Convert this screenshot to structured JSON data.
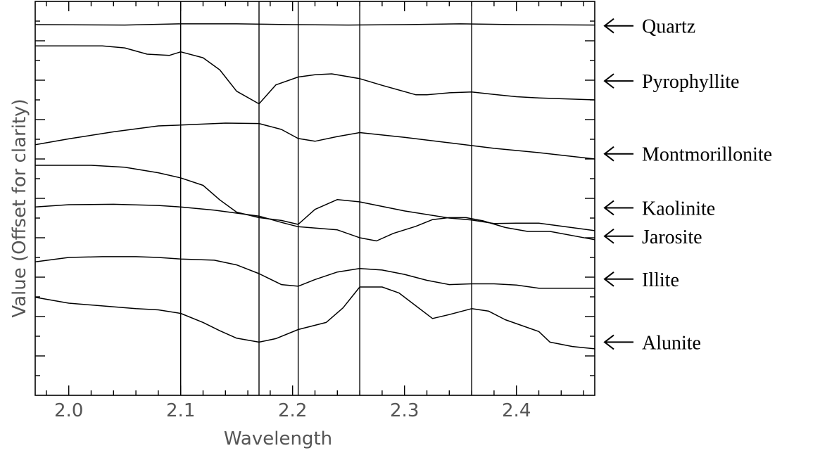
{
  "chart_data": {
    "type": "line",
    "title": "",
    "xlabel": "Wavelength",
    "ylabel": "Value (Offset for clarity)",
    "xlim": [
      1.97,
      2.47
    ],
    "ylim": [
      0,
      1
    ],
    "xticks": [
      2.0,
      2.1,
      2.2,
      2.3,
      2.4
    ],
    "xtick_labels": [
      "2.0",
      "2.1",
      "2.2",
      "2.3",
      "2.4"
    ],
    "reference_lines_x": [
      2.1,
      2.17,
      2.205,
      2.26,
      2.36
    ],
    "grid": false,
    "legend": "right, arrow-labelled",
    "line_color": "#000000",
    "series": [
      {
        "name": "Quartz",
        "label_y": 0.938,
        "points": [
          [
            1.97,
            0.941
          ],
          [
            2.05,
            0.94
          ],
          [
            2.1,
            0.943
          ],
          [
            2.15,
            0.943
          ],
          [
            2.2,
            0.941
          ],
          [
            2.25,
            0.94
          ],
          [
            2.3,
            0.941
          ],
          [
            2.35,
            0.943
          ],
          [
            2.4,
            0.941
          ],
          [
            2.47,
            0.94
          ]
        ]
      },
      {
        "name": "Pyrophyllite",
        "label_y": 0.798,
        "points": [
          [
            1.97,
            0.887
          ],
          [
            2.03,
            0.887
          ],
          [
            2.05,
            0.882
          ],
          [
            2.07,
            0.866
          ],
          [
            2.09,
            0.863
          ],
          [
            2.1,
            0.872
          ],
          [
            2.12,
            0.857
          ],
          [
            2.135,
            0.826
          ],
          [
            2.15,
            0.772
          ],
          [
            2.17,
            0.74
          ],
          [
            2.185,
            0.788
          ],
          [
            2.205,
            0.808
          ],
          [
            2.22,
            0.814
          ],
          [
            2.235,
            0.816
          ],
          [
            2.26,
            0.804
          ],
          [
            2.28,
            0.787
          ],
          [
            2.31,
            0.763
          ],
          [
            2.32,
            0.763
          ],
          [
            2.34,
            0.768
          ],
          [
            2.36,
            0.77
          ],
          [
            2.38,
            0.764
          ],
          [
            2.4,
            0.758
          ],
          [
            2.42,
            0.755
          ],
          [
            2.47,
            0.75
          ]
        ]
      },
      {
        "name": "Montmorillonite",
        "label_y": 0.613,
        "points": [
          [
            1.97,
            0.636
          ],
          [
            2.0,
            0.651
          ],
          [
            2.04,
            0.669
          ],
          [
            2.08,
            0.684
          ],
          [
            2.1,
            0.686
          ],
          [
            2.14,
            0.691
          ],
          [
            2.17,
            0.69
          ],
          [
            2.19,
            0.675
          ],
          [
            2.205,
            0.652
          ],
          [
            2.22,
            0.645
          ],
          [
            2.24,
            0.657
          ],
          [
            2.26,
            0.667
          ],
          [
            2.3,
            0.655
          ],
          [
            2.34,
            0.641
          ],
          [
            2.38,
            0.627
          ],
          [
            2.42,
            0.616
          ],
          [
            2.47,
            0.6
          ]
        ]
      },
      {
        "name": "Kaolinite",
        "label_y": 0.476,
        "points": [
          [
            1.97,
            0.584
          ],
          [
            2.02,
            0.584
          ],
          [
            2.05,
            0.579
          ],
          [
            2.08,
            0.565
          ],
          [
            2.1,
            0.552
          ],
          [
            2.12,
            0.533
          ],
          [
            2.135,
            0.496
          ],
          [
            2.15,
            0.465
          ],
          [
            2.17,
            0.451
          ],
          [
            2.19,
            0.444
          ],
          [
            2.205,
            0.434
          ],
          [
            2.22,
            0.472
          ],
          [
            2.24,
            0.497
          ],
          [
            2.26,
            0.491
          ],
          [
            2.3,
            0.468
          ],
          [
            2.34,
            0.45
          ],
          [
            2.36,
            0.445
          ],
          [
            2.38,
            0.436
          ],
          [
            2.4,
            0.437
          ],
          [
            2.42,
            0.437
          ],
          [
            2.47,
            0.418
          ]
        ]
      },
      {
        "name": "Jarosite",
        "label_y": 0.404,
        "points": [
          [
            1.97,
            0.478
          ],
          [
            2.0,
            0.484
          ],
          [
            2.04,
            0.485
          ],
          [
            2.08,
            0.482
          ],
          [
            2.1,
            0.478
          ],
          [
            2.13,
            0.47
          ],
          [
            2.17,
            0.455
          ],
          [
            2.19,
            0.439
          ],
          [
            2.205,
            0.428
          ],
          [
            2.24,
            0.42
          ],
          [
            2.26,
            0.4
          ],
          [
            2.275,
            0.392
          ],
          [
            2.29,
            0.411
          ],
          [
            2.31,
            0.429
          ],
          [
            2.325,
            0.446
          ],
          [
            2.34,
            0.451
          ],
          [
            2.355,
            0.451
          ],
          [
            2.37,
            0.443
          ],
          [
            2.39,
            0.426
          ],
          [
            2.41,
            0.416
          ],
          [
            2.43,
            0.416
          ],
          [
            2.47,
            0.395
          ]
        ]
      },
      {
        "name": "Illite",
        "label_y": 0.295,
        "points": [
          [
            1.97,
            0.339
          ],
          [
            2.0,
            0.35
          ],
          [
            2.03,
            0.352
          ],
          [
            2.06,
            0.352
          ],
          [
            2.08,
            0.35
          ],
          [
            2.1,
            0.346
          ],
          [
            2.13,
            0.343
          ],
          [
            2.15,
            0.331
          ],
          [
            2.17,
            0.309
          ],
          [
            2.19,
            0.281
          ],
          [
            2.205,
            0.277
          ],
          [
            2.22,
            0.294
          ],
          [
            2.24,
            0.313
          ],
          [
            2.26,
            0.322
          ],
          [
            2.28,
            0.318
          ],
          [
            2.3,
            0.307
          ],
          [
            2.32,
            0.292
          ],
          [
            2.34,
            0.281
          ],
          [
            2.36,
            0.283
          ],
          [
            2.38,
            0.283
          ],
          [
            2.4,
            0.28
          ],
          [
            2.42,
            0.272
          ],
          [
            2.47,
            0.272
          ]
        ]
      },
      {
        "name": "Alunite",
        "label_y": 0.135,
        "points": [
          [
            1.97,
            0.249
          ],
          [
            2.0,
            0.234
          ],
          [
            2.03,
            0.227
          ],
          [
            2.06,
            0.22
          ],
          [
            2.08,
            0.217
          ],
          [
            2.1,
            0.208
          ],
          [
            2.12,
            0.185
          ],
          [
            2.135,
            0.164
          ],
          [
            2.15,
            0.145
          ],
          [
            2.17,
            0.135
          ],
          [
            2.185,
            0.144
          ],
          [
            2.205,
            0.167
          ],
          [
            2.23,
            0.185
          ],
          [
            2.245,
            0.222
          ],
          [
            2.26,
            0.275
          ],
          [
            2.28,
            0.275
          ],
          [
            2.295,
            0.26
          ],
          [
            2.325,
            0.195
          ],
          [
            2.34,
            0.205
          ],
          [
            2.36,
            0.22
          ],
          [
            2.375,
            0.214
          ],
          [
            2.39,
            0.192
          ],
          [
            2.42,
            0.162
          ],
          [
            2.43,
            0.135
          ],
          [
            2.45,
            0.124
          ],
          [
            2.47,
            0.118
          ]
        ]
      }
    ]
  }
}
